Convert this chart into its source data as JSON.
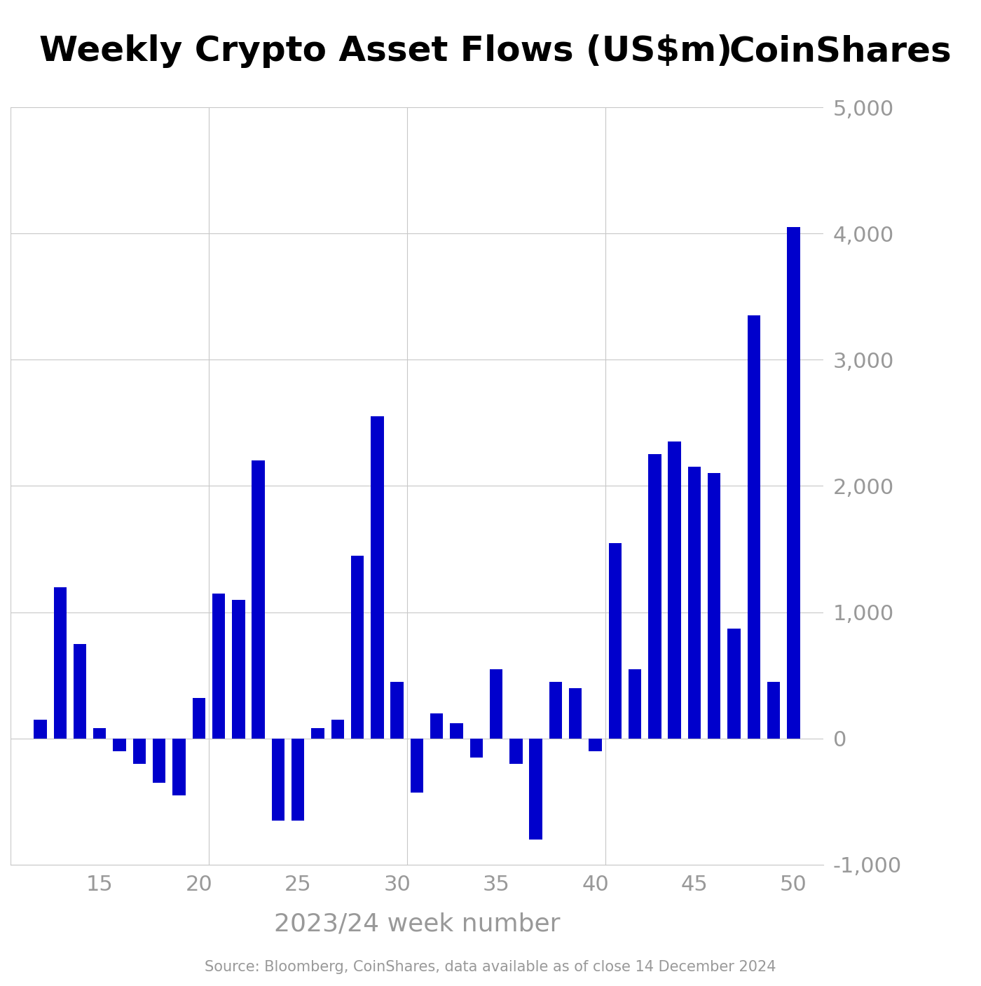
{
  "title": "Weekly Crypto Asset Flows (US$m)",
  "coinshares_label": "CoinShares",
  "xlabel": "2023/24 week number",
  "source_text": "Source: Bloomberg, CoinShares, data available as of close 14 December 2024",
  "bar_color": "#0000CC",
  "background_color": "#ffffff",
  "grid_color": "#c8c8c8",
  "tick_color": "#999999",
  "ylim": [
    -1000,
    5000
  ],
  "yticks": [
    -1000,
    0,
    1000,
    2000,
    3000,
    4000,
    5000
  ],
  "xticks": [
    15,
    20,
    25,
    30,
    35,
    40,
    45,
    50
  ],
  "weeks": [
    12,
    13,
    14,
    15,
    16,
    17,
    18,
    19,
    20,
    21,
    22,
    23,
    24,
    25,
    26,
    27,
    28,
    29,
    30,
    31,
    32,
    33,
    34,
    35,
    36,
    37,
    38,
    39,
    40,
    41,
    42,
    43,
    44,
    45,
    46,
    47,
    48,
    49,
    50
  ],
  "values": [
    150,
    1200,
    750,
    80,
    -100,
    -200,
    -350,
    -450,
    320,
    1150,
    1100,
    2200,
    -650,
    -650,
    80,
    150,
    1450,
    2550,
    450,
    -430,
    200,
    120,
    -150,
    550,
    -200,
    -800,
    450,
    400,
    -100,
    1550,
    550,
    2250,
    2350,
    2150,
    2100,
    870,
    3350,
    450,
    4050
  ]
}
